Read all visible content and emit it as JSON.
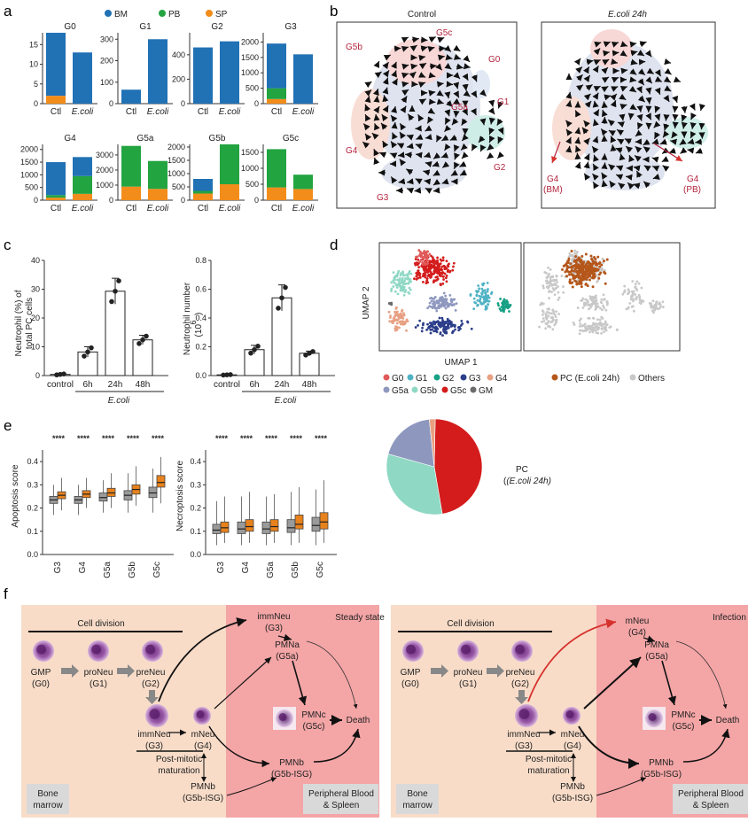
{
  "colors": {
    "BM": "#2171b5",
    "PB": "#22a441",
    "SP": "#f28c1a",
    "ctl_box": "#9a9a9a",
    "ecoli_box": "#e8821c",
    "marrow_bg": "#f8dcc8",
    "blood_bg": "#f4a5a6",
    "arrow_red": "#d6322d"
  },
  "panel_labels": {
    "a": "a",
    "b": "b",
    "c": "c",
    "d": "d",
    "e": "e",
    "f": "f"
  },
  "panel_a": {
    "legend": [
      {
        "key": "BM",
        "label": "BM"
      },
      {
        "key": "PB",
        "label": "PB"
      },
      {
        "key": "SP",
        "label": "SP"
      }
    ],
    "x_labels": [
      "Ctl",
      "E.coli"
    ],
    "charts": [
      {
        "title": "G0",
        "ymax": 18,
        "ticks": [
          0,
          5,
          10,
          15
        ],
        "bars": [
          {
            "BM": 16,
            "PB": 0,
            "SP": 2
          },
          {
            "BM": 13,
            "PB": 0,
            "SP": 0
          }
        ]
      },
      {
        "title": "G1",
        "ymax": 330,
        "ticks": [
          0,
          100,
          200,
          300
        ],
        "bars": [
          {
            "BM": 65,
            "PB": 0,
            "SP": 0
          },
          {
            "BM": 300,
            "PB": 0,
            "SP": 0
          }
        ]
      },
      {
        "title": "G2",
        "ymax": 580,
        "ticks": [
          0,
          200,
          400
        ],
        "bars": [
          {
            "BM": 460,
            "PB": 0,
            "SP": 0
          },
          {
            "BM": 510,
            "PB": 0,
            "SP": 0
          }
        ]
      },
      {
        "title": "G3",
        "ymax": 2300,
        "ticks": [
          0,
          500,
          1000,
          1500,
          2000
        ],
        "bars": [
          {
            "BM": 1450,
            "PB": 350,
            "SP": 150
          },
          {
            "BM": 1600,
            "PB": 0,
            "SP": 0
          }
        ]
      },
      {
        "title": "G4",
        "ymax": 2200,
        "ticks": [
          0,
          500,
          1000,
          1500,
          2000
        ],
        "bars": [
          {
            "BM": 1300,
            "PB": 100,
            "SP": 100
          },
          {
            "BM": 750,
            "PB": 700,
            "SP": 250
          }
        ]
      },
      {
        "title": "G5a",
        "ymax": 3700,
        "ticks": [
          0,
          1000,
          2000,
          3000
        ],
        "bars": [
          {
            "BM": 0,
            "PB": 2700,
            "SP": 900
          },
          {
            "BM": 0,
            "PB": 1850,
            "SP": 750
          }
        ]
      },
      {
        "title": "G5b",
        "ymax": 2100,
        "ticks": [
          0,
          500,
          1000,
          1500,
          2000
        ],
        "bars": [
          {
            "BM": 450,
            "PB": 100,
            "SP": 250
          },
          {
            "BM": 0,
            "PB": 1500,
            "SP": 600
          }
        ]
      },
      {
        "title": "G5c",
        "ymax": 1750,
        "ticks": [
          0,
          500,
          1000,
          1500
        ],
        "bars": [
          {
            "BM": 0,
            "PB": 1200,
            "SP": 400
          },
          {
            "BM": 0,
            "PB": 450,
            "SP": 350
          }
        ]
      }
    ]
  },
  "panel_b": {
    "control_title": "Control",
    "ecoli_title": "E.coli 24h",
    "cluster_labels": [
      "G5c",
      "G5b",
      "G0",
      "G5a",
      "G1",
      "G4",
      "G2",
      "G3"
    ],
    "ecoli_labels": [
      {
        "line1": "G4",
        "line2": "(BM)"
      },
      {
        "line1": "G4",
        "line2": "(PB)"
      }
    ]
  },
  "panel_c": {
    "categories": [
      "control",
      "6h",
      "24h",
      "48h"
    ],
    "group_label": "E.coli",
    "pct": {
      "ylabel_1": "Neutrophil (%) of",
      "ylabel_2": "total PC cells",
      "ticks": [
        0,
        10,
        20,
        30,
        40
      ],
      "ymax": 40,
      "values": [
        0.4,
        8.2,
        29.3,
        12.4
      ],
      "errors": [
        0.2,
        1.8,
        4.5,
        1.6
      ]
    },
    "num": {
      "ylabel_1": "Neutrophil number",
      "ylabel_2": "(10",
      "exp": "6",
      "ylabel_3": ")",
      "ticks": [
        "0.0",
        "0.2",
        "0.4",
        "0.6",
        "0.8"
      ],
      "ymax": 0.8,
      "values": [
        0.005,
        0.18,
        0.54,
        0.155
      ],
      "errors": [
        0.002,
        0.03,
        0.09,
        0.015
      ]
    }
  },
  "panel_d": {
    "ylabel": "UMAP 2",
    "xlabel": "UMAP 1",
    "legend": [
      {
        "label": "G0",
        "color": "#e05a5a"
      },
      {
        "label": "G1",
        "color": "#4fb3c4"
      },
      {
        "label": "G2",
        "color": "#16a085"
      },
      {
        "label": "G3",
        "color": "#2c3e8a"
      },
      {
        "label": "G4",
        "color": "#e8a083"
      },
      {
        "label": "G5a",
        "color": "#8e98bf"
      },
      {
        "label": "G5b",
        "color": "#8fd8c4"
      },
      {
        "label": "G5c",
        "color": "#d41c1c"
      },
      {
        "label": "GM",
        "color": "#6b6b6b"
      }
    ],
    "legend2": [
      {
        "label": "PC (E.coli 24h)",
        "color": "#b5561a"
      },
      {
        "label": "Others",
        "color": "#c8c8c8"
      }
    ]
  },
  "panel_e": {
    "categories": [
      "G3",
      "G4",
      "G5a",
      "G5b",
      "G5c"
    ],
    "sig": "****",
    "apoptosis": {
      "ylabel": "Apoptosis score",
      "ticks": [
        "0.0",
        "0.1",
        "0.2",
        "0.3",
        "0.4"
      ],
      "ymax": 0.45
    },
    "necroptosis": {
      "ylabel": "Necroptosis score",
      "ticks": [
        "0.0",
        "0.1",
        "0.2",
        "0.3",
        "0.4"
      ],
      "ymax": 0.45
    }
  },
  "pie": {
    "label_1": "PC",
    "label_2": "(E.coli 24h)",
    "slices": [
      {
        "name": "G5c",
        "value": 47,
        "color": "#d41c1c"
      },
      {
        "name": "G5b",
        "value": 32,
        "color": "#8fd8c4"
      },
      {
        "name": "G5a",
        "value": 19,
        "color": "#8e98bf"
      },
      {
        "name": "G4",
        "value": 2,
        "color": "#e8a083"
      }
    ]
  },
  "panel_f": {
    "steady": {
      "state": "Steady state",
      "g4_label": "mNeu",
      "g4_id": "(G4)",
      "g3_top": "immNeu",
      "g3_top_id": "(G3)"
    },
    "infection": {
      "state": "Infection",
      "g4_top": "mNeu",
      "g4_top_id": "(G4)"
    },
    "cell_division": "Cell division",
    "nodes": {
      "gmp": "GMP",
      "gmp_id": "(G0)",
      "proneu": "proNeu",
      "proneu_id": "(G1)",
      "preneu": "preNeu",
      "preneu_id": "(G2)",
      "immneu": "immNeu",
      "immneu_id": "(G3)",
      "mneu": "mNeu",
      "mneu_id": "(G4)",
      "pmna": "PMNa",
      "pmna_id": "(G5a)",
      "pmnc": "PMNc",
      "pmnc_id": "(G5c)",
      "pmnb": "PMNb",
      "pmnb_id": "(G5b-ISG)",
      "death": "Death",
      "post1": "Post-mitotic",
      "post2": "maturation",
      "pmnb_bm": "PMNb",
      "pmnb_bm_id": "(G5b-ISG)",
      "bm_1": "Bone",
      "bm_2": "marrow",
      "pb_1": "Peripheral Blood",
      "pb_2": "& Spleen"
    }
  }
}
